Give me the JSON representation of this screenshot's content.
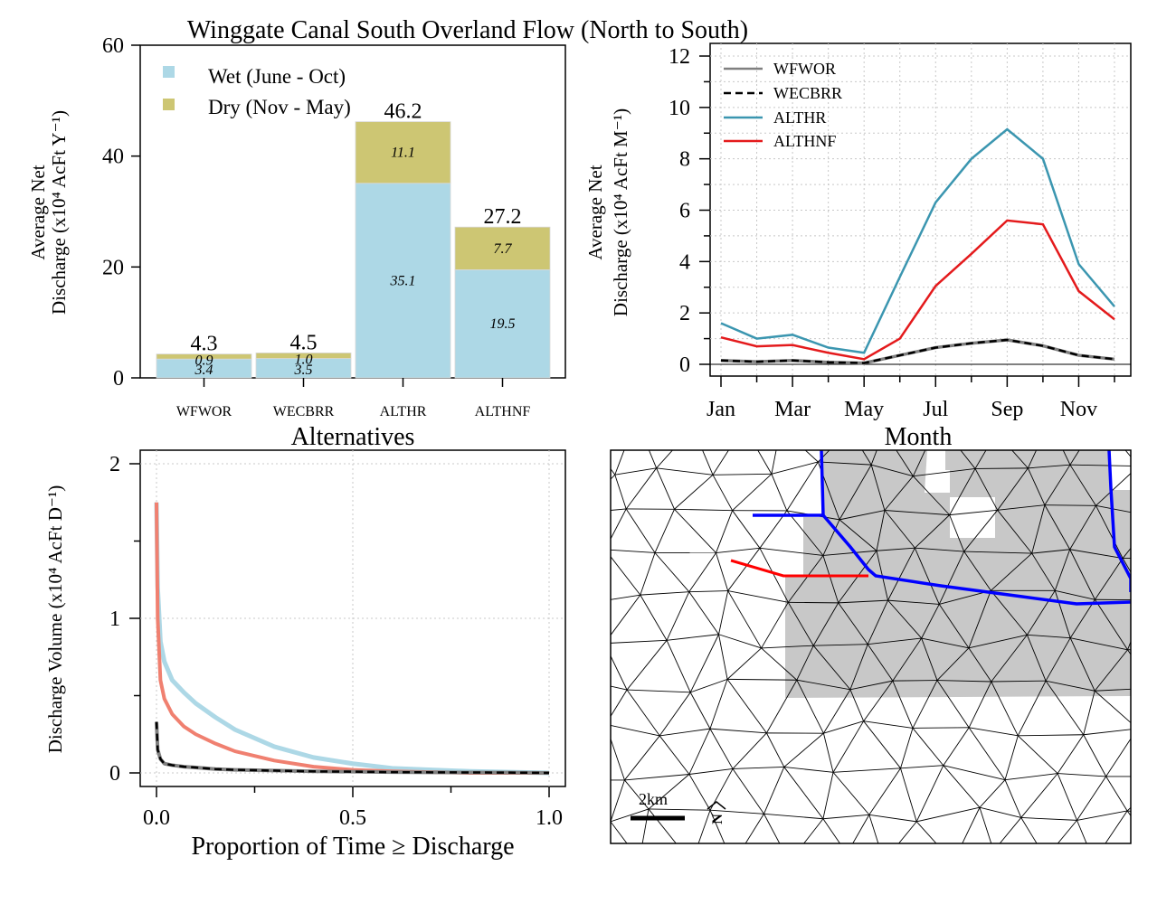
{
  "page_title": "Winggate Canal South Overland Flow (North to South)",
  "colors": {
    "wet": "#add8e6",
    "dry": "#cdc673",
    "WFWOR": "#808080",
    "WECBRR": "#000000",
    "ALTHR": "#3b96b0",
    "ALTHNF": "#e41a1c",
    "curve_wet_like": "#add8e6",
    "curve_altnf": "#f08070",
    "map_shade": "#c8c8c8",
    "canal_blue": "#0000ff",
    "canal_red": "#ff0000"
  },
  "chart_data": [
    {
      "type": "bar",
      "stacked": true,
      "categories": [
        "WFWOR",
        "WECBRR",
        "ALTHR",
        "ALTHNF"
      ],
      "series": [
        {
          "name": "Wet (June - Oct)",
          "values": [
            3.4,
            3.5,
            35.1,
            19.5
          ],
          "labels": [
            "3.4",
            "3.5",
            "35.1",
            "19.5"
          ]
        },
        {
          "name": "Dry (Nov - May)",
          "values": [
            0.9,
            1.0,
            11.1,
            7.7
          ],
          "labels": [
            "0.9",
            "1.0",
            "11.1",
            "7.7"
          ]
        }
      ],
      "totals": [
        "4.3",
        "4.5",
        "46.2",
        "27.2"
      ],
      "xlabel": "Alternatives",
      "ylabel_line1": "Average Net",
      "ylabel_line2": "Discharge (x10⁴ AcFt Y⁻¹)",
      "ylim": [
        0,
        60
      ],
      "yticks": [
        0,
        20,
        40,
        60
      ],
      "legend_position": "top-left"
    },
    {
      "type": "line",
      "x": [
        1,
        2,
        3,
        4,
        5,
        6,
        7,
        8,
        9,
        10,
        11,
        12
      ],
      "xticks": [
        1,
        3,
        5,
        7,
        9,
        11
      ],
      "xticklabels": [
        "Jan",
        "Mar",
        "May",
        "Jul",
        "Sep",
        "Nov"
      ],
      "series": [
        {
          "name": "WFWOR",
          "values": [
            0.15,
            0.1,
            0.15,
            0.08,
            0.05,
            0.35,
            0.65,
            0.82,
            0.95,
            0.72,
            0.35,
            0.2
          ]
        },
        {
          "name": "WECBRR",
          "values": [
            0.15,
            0.1,
            0.15,
            0.08,
            0.05,
            0.35,
            0.65,
            0.82,
            0.95,
            0.72,
            0.35,
            0.2
          ]
        },
        {
          "name": "ALTHR",
          "values": [
            1.6,
            1.0,
            1.15,
            0.65,
            0.45,
            3.4,
            6.3,
            8.0,
            9.15,
            8.0,
            3.9,
            2.25
          ]
        },
        {
          "name": "ALTHNF",
          "values": [
            1.05,
            0.7,
            0.75,
            0.45,
            0.2,
            1.0,
            3.05,
            4.3,
            5.6,
            5.45,
            2.85,
            1.75
          ]
        }
      ],
      "xlabel": "Month",
      "ylabel_line1": "Average Net",
      "ylabel_line2": "Discharge (x10⁴ AcFt M⁻¹)",
      "ylim": [
        0,
        12
      ],
      "yticks": [
        0,
        2,
        4,
        6,
        8,
        10,
        12
      ],
      "grid": true,
      "legend_position": "top-left"
    },
    {
      "type": "line",
      "xlabel": "Proportion of Time ≥ Discharge",
      "ylabel": "Discharge Volume (x10⁴ AcFt D⁻¹)",
      "xlim": [
        0,
        1
      ],
      "ylim": [
        0,
        2
      ],
      "xticks": [
        0.0,
        0.5,
        1.0
      ],
      "xticklabels": [
        "0.0",
        "0.5",
        "1.0"
      ],
      "yticks": [
        0,
        1,
        2
      ],
      "grid": true,
      "series": [
        {
          "name": "ALTHR",
          "x": [
            0.0,
            0.003,
            0.01,
            0.02,
            0.04,
            0.07,
            0.1,
            0.15,
            0.2,
            0.3,
            0.4,
            0.5,
            0.6,
            0.7,
            0.8,
            0.9,
            1.0
          ],
          "values": [
            1.75,
            1.2,
            0.85,
            0.72,
            0.6,
            0.52,
            0.45,
            0.36,
            0.28,
            0.17,
            0.1,
            0.06,
            0.03,
            0.02,
            0.01,
            0.005,
            0.0
          ]
        },
        {
          "name": "ALTHNF",
          "x": [
            0.0,
            0.003,
            0.01,
            0.02,
            0.04,
            0.07,
            0.1,
            0.15,
            0.2,
            0.3,
            0.4,
            0.5,
            0.6,
            0.7,
            0.8,
            0.9,
            1.0
          ],
          "values": [
            1.75,
            1.0,
            0.6,
            0.48,
            0.38,
            0.3,
            0.25,
            0.19,
            0.14,
            0.08,
            0.04,
            0.02,
            0.01,
            0.005,
            0.0,
            0.0,
            0.0
          ]
        },
        {
          "name": "WFWOR",
          "x": [
            0.0,
            0.003,
            0.01,
            0.02,
            0.04,
            0.07,
            0.1,
            0.15,
            0.2,
            0.3,
            0.4,
            0.5,
            0.6,
            0.7,
            0.8,
            0.9,
            1.0
          ],
          "values": [
            0.33,
            0.15,
            0.09,
            0.06,
            0.05,
            0.04,
            0.035,
            0.025,
            0.02,
            0.015,
            0.01,
            0.008,
            0.005,
            0.004,
            0.003,
            0.002,
            0.0
          ]
        },
        {
          "name": "WECBRR",
          "x": [
            0.0,
            0.003,
            0.01,
            0.02,
            0.04,
            0.07,
            0.1,
            0.15,
            0.2,
            0.3,
            0.4,
            0.5,
            0.6,
            0.7,
            0.8,
            0.9,
            1.0
          ],
          "values": [
            0.33,
            0.15,
            0.09,
            0.06,
            0.05,
            0.04,
            0.035,
            0.025,
            0.02,
            0.015,
            0.01,
            0.008,
            0.005,
            0.004,
            0.003,
            0.002,
            0.0
          ]
        }
      ]
    }
  ],
  "map": {
    "scale_label": "2km",
    "north_arrow_label": "N"
  }
}
